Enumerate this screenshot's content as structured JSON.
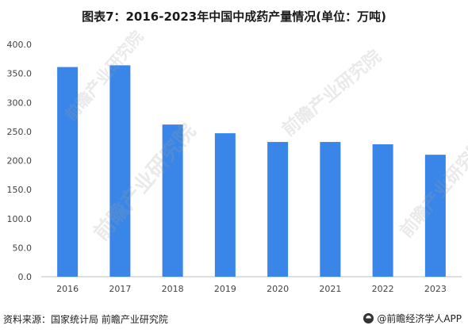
{
  "chart_data": {
    "type": "bar",
    "title": "图表7：2016-2023年中国中成药产量情况(单位：万吨)",
    "categories": [
      "2016",
      "2017",
      "2018",
      "2019",
      "2020",
      "2021",
      "2022",
      "2023"
    ],
    "values": [
      361.0,
      364.0,
      262.0,
      247.0,
      232.0,
      232.0,
      228.0,
      210.0
    ],
    "ylim": [
      0,
      400
    ],
    "yticks": [
      "0.0",
      "50.0",
      "100.0",
      "150.0",
      "200.0",
      "250.0",
      "300.0",
      "350.0",
      "400.0"
    ],
    "bar_color": "#3a86e8",
    "grid": false
  },
  "footer": {
    "source": "资料来源：国家统计局 前瞻产业研究院",
    "brand": "@前瞻经济学人APP"
  },
  "watermark": "前瞻产业研究院"
}
